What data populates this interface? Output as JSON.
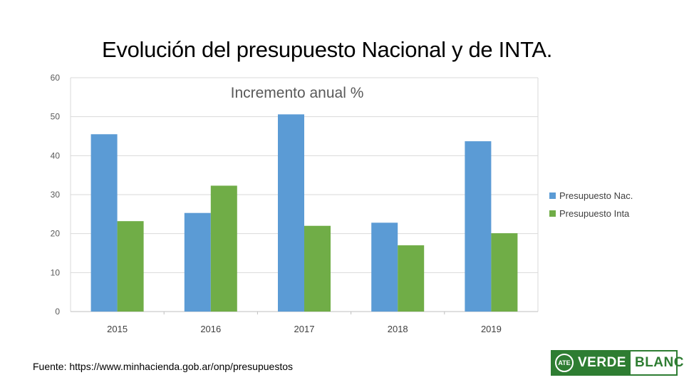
{
  "slide": {
    "title": "Evolución del presupuesto Nacional y de INTA.",
    "source": "Fuente: https://www.minhacienda.gob.ar/onp/presupuestos"
  },
  "logo": {
    "emblem": "ATE",
    "word1": "VERDE",
    "word2": "BLANCA",
    "color": "#2e7d32"
  },
  "chart_data": {
    "type": "bar",
    "title": "Incremento anual %",
    "categories": [
      "2015",
      "2016",
      "2017",
      "2018",
      "2019"
    ],
    "series": [
      {
        "name": "Presupuesto Nac.",
        "color": "#5b9bd5",
        "values": [
          45.5,
          25.3,
          50.6,
          22.8,
          43.7
        ]
      },
      {
        "name": "Presupuesto Inta",
        "color": "#70ad47",
        "values": [
          23.2,
          32.3,
          22.0,
          17.0,
          20.1
        ]
      }
    ],
    "yticks": [
      0,
      10,
      20,
      30,
      40,
      50,
      60
    ],
    "ylim": [
      0,
      60
    ],
    "xlabel": "",
    "ylabel": "",
    "grid": true,
    "legend": "right"
  }
}
